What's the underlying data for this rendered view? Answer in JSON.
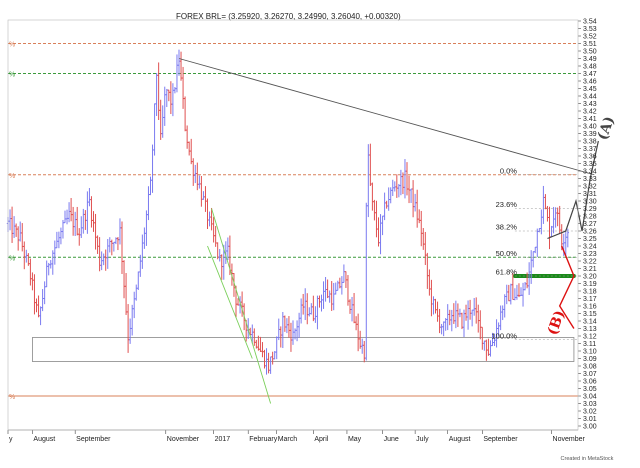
{
  "title": "FOREX BRL= (3.25920, 3.26270, 3.24990, 3.26040, +0.00320)",
  "credit": "Created in MetaStock",
  "chart_data": {
    "type": "bar",
    "ohlc_style": "bar",
    "ylim": [
      3.0,
      3.54
    ],
    "y_ticks": [
      "3.54",
      "3.53",
      "3.52",
      "3.51",
      "3.50",
      "3.49",
      "3.48",
      "3.47",
      "3.46",
      "3.45",
      "3.44",
      "3.43",
      "3.42",
      "3.41",
      "3.40",
      "3.39",
      "3.38",
      "3.37",
      "3.36",
      "3.35",
      "3.34",
      "3.33",
      "3.32",
      "3.31",
      "3.30",
      "3.29",
      "3.28",
      "3.27",
      "3.26",
      "3.25",
      "3.24",
      "3.23",
      "3.22",
      "3.21",
      "3.20",
      "3.19",
      "3.18",
      "3.17",
      "3.16",
      "3.15",
      "3.14",
      "3.13",
      "3.12",
      "3.11",
      "3.10",
      "3.09",
      "3.08",
      "3.07",
      "3.06",
      "3.05",
      "3.04",
      "3.03",
      "3.02",
      "3.01",
      "3.00"
    ],
    "x_labels": [
      {
        "label": "y",
        "index": 0
      },
      {
        "label": "August",
        "index": 24
      },
      {
        "label": "September",
        "index": 66
      },
      {
        "label": "November",
        "index": 155
      },
      {
        "label": "2017",
        "index": 202
      },
      {
        "label": "February",
        "index": 236
      },
      {
        "label": "March",
        "index": 264
      },
      {
        "label": "April",
        "index": 300
      },
      {
        "label": "May",
        "index": 333
      },
      {
        "label": "June",
        "index": 368
      },
      {
        "label": "July",
        "index": 400
      },
      {
        "label": "August",
        "index": 432
      },
      {
        "label": "September",
        "index": 466
      },
      {
        "label": "November",
        "index": 534
      }
    ],
    "price_anchors": [
      [
        0,
        3.27
      ],
      [
        12,
        3.25
      ],
      [
        22,
        3.2
      ],
      [
        30,
        3.14
      ],
      [
        40,
        3.22
      ],
      [
        50,
        3.25
      ],
      [
        60,
        3.28
      ],
      [
        70,
        3.26
      ],
      [
        80,
        3.3
      ],
      [
        90,
        3.22
      ],
      [
        100,
        3.24
      ],
      [
        110,
        3.26
      ],
      [
        118,
        3.12
      ],
      [
        126,
        3.18
      ],
      [
        134,
        3.26
      ],
      [
        140,
        3.32
      ],
      [
        146,
        3.47
      ],
      [
        150,
        3.38
      ],
      [
        155,
        3.45
      ],
      [
        161,
        3.43
      ],
      [
        168,
        3.49
      ],
      [
        174,
        3.4
      ],
      [
        180,
        3.35
      ],
      [
        186,
        3.33
      ],
      [
        192,
        3.3
      ],
      [
        200,
        3.26
      ],
      [
        208,
        3.22
      ],
      [
        216,
        3.23
      ],
      [
        224,
        3.17
      ],
      [
        230,
        3.15
      ],
      [
        236,
        3.13
      ],
      [
        242,
        3.12
      ],
      [
        248,
        3.1
      ],
      [
        256,
        3.08
      ],
      [
        262,
        3.1
      ],
      [
        270,
        3.14
      ],
      [
        280,
        3.12
      ],
      [
        290,
        3.16
      ],
      [
        300,
        3.15
      ],
      [
        310,
        3.18
      ],
      [
        320,
        3.17
      ],
      [
        330,
        3.2
      ],
      [
        340,
        3.14
      ],
      [
        346,
        3.11
      ],
      [
        350,
        3.1
      ],
      [
        353,
        3.38
      ],
      [
        357,
        3.3
      ],
      [
        364,
        3.25
      ],
      [
        372,
        3.3
      ],
      [
        380,
        3.32
      ],
      [
        390,
        3.33
      ],
      [
        398,
        3.3
      ],
      [
        406,
        3.26
      ],
      [
        414,
        3.18
      ],
      [
        420,
        3.15
      ],
      [
        428,
        3.13
      ],
      [
        436,
        3.15
      ],
      [
        446,
        3.14
      ],
      [
        456,
        3.16
      ],
      [
        466,
        3.12
      ],
      [
        472,
        3.1
      ],
      [
        478,
        3.12
      ],
      [
        486,
        3.16
      ],
      [
        494,
        3.18
      ],
      [
        502,
        3.17
      ],
      [
        510,
        3.19
      ],
      [
        520,
        3.26
      ],
      [
        526,
        3.3
      ],
      [
        532,
        3.26
      ],
      [
        538,
        3.29
      ],
      [
        544,
        3.25
      ],
      [
        550,
        3.26
      ]
    ],
    "reference_lines": [
      {
        "price": 3.51,
        "color": "#d9805a",
        "style": "dashed"
      },
      {
        "price": 3.47,
        "color": "#3c9a3c",
        "style": "dashed"
      },
      {
        "price": 3.335,
        "color": "#d9805a",
        "style": "dashed"
      },
      {
        "price": 3.225,
        "color": "#3c9a3c",
        "style": "dashed"
      },
      {
        "price": 3.04,
        "color": "#d9805a",
        "style": "solid"
      }
    ],
    "fibonacci": [
      {
        "label": "0.0%",
        "price": 3.335
      },
      {
        "label": "23.6%",
        "price": 3.29
      },
      {
        "label": "38.2%",
        "price": 3.26
      },
      {
        "label": "50.0%",
        "price": 3.225
      },
      {
        "label": "61.8%",
        "price": 3.2
      },
      {
        "label": "100.0%",
        "price": 3.115
      }
    ],
    "trendlines": [
      {
        "name": "downtrend",
        "color": "#555555",
        "from": [
          168,
          3.49
        ],
        "to": [
          576,
          3.335
        ]
      },
      {
        "name": "channel",
        "color": "#7acf5a",
        "from": [
          200,
          3.29
        ],
        "to": [
          258,
          3.03
        ]
      },
      {
        "name": "channel",
        "color": "#7acf5a",
        "from": [
          196,
          3.24
        ],
        "to": [
          240,
          3.09
        ]
      }
    ],
    "support_box": {
      "x_start": 24,
      "x_end": 556,
      "top": 3.118,
      "bottom": 3.086
    },
    "support_line": {
      "price": 3.2,
      "x_start": 498,
      "x_end": 556,
      "color": "#1a8a1a"
    },
    "annotations": [
      {
        "text": "(A)",
        "color": "#444444",
        "side": "upper"
      },
      {
        "text": "(B)",
        "color": "#dd1111",
        "side": "lower"
      }
    ],
    "colors": {
      "up": "#7a7af0",
      "down": "#e05050",
      "grid": "#999999"
    }
  }
}
